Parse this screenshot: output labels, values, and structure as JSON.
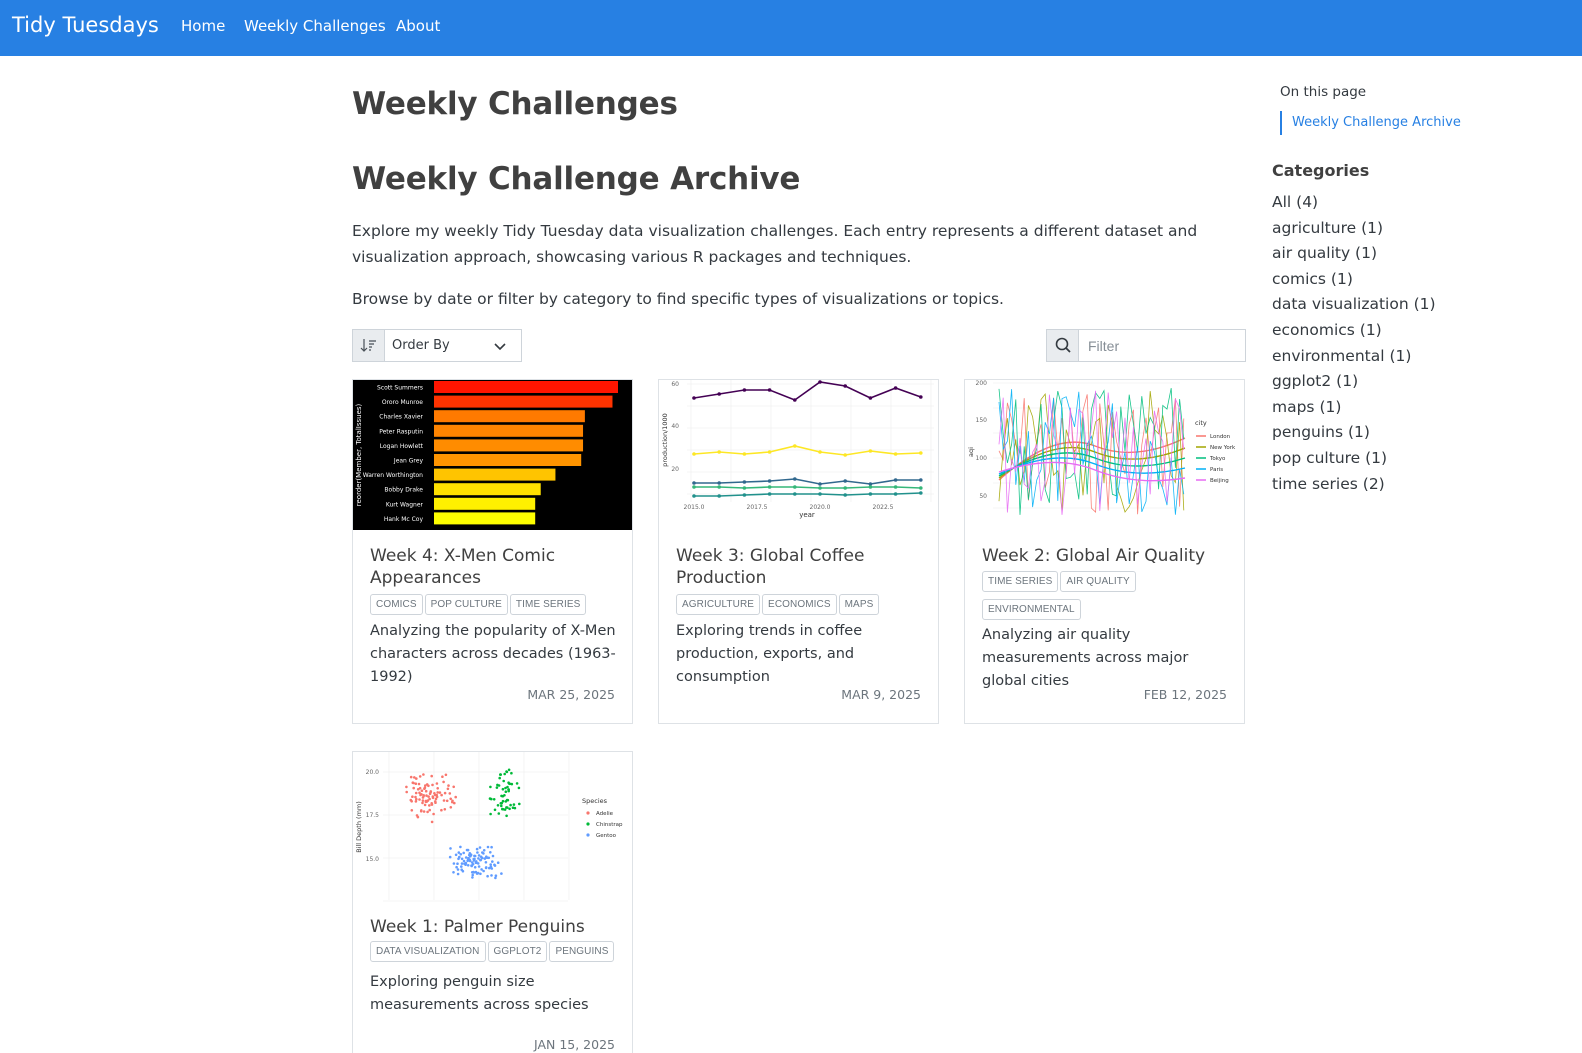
{
  "navbar": {
    "brand": "Tidy Tuesdays",
    "links": [
      "Home",
      "Weekly Challenges",
      "About"
    ]
  },
  "page": {
    "title": "Weekly Challenges",
    "section_title": "Weekly Challenge Archive",
    "intro": "Explore my weekly Tidy Tuesday data visualization challenges. Each entry represents a different dataset and visualization approach, showcasing various R packages and techniques.",
    "browse": "Browse by date or filter by category to find specific types of visualizations or topics."
  },
  "controls": {
    "order_by_label": "Order By",
    "filter_placeholder": "Filter"
  },
  "cards": [
    {
      "title": "Week 4: X-Men Comic Appearances",
      "tags": [
        "COMICS",
        "POP CULTURE",
        "TIME SERIES"
      ],
      "description": "Analyzing the popularity of X-Men characters across decades (1963-1992)",
      "date": "MAR 25, 2025"
    },
    {
      "title": "Week 3: Global Coffee Production",
      "tags": [
        "AGRICULTURE",
        "ECONOMICS",
        "MAPS"
      ],
      "description": "Exploring trends in coffee production, exports, and consumption",
      "date": "MAR 9, 2025"
    },
    {
      "title": "Week 2: Global Air Quality",
      "tags": [
        "TIME SERIES",
        "AIR QUALITY",
        "ENVIRONMENTAL"
      ],
      "description": "Analyzing air quality measurements across major global cities",
      "date": "FEB 12, 2025"
    },
    {
      "title": "Week 1: Palmer Penguins",
      "tags": [
        "DATA VISUALIZATION",
        "GGPLOT2",
        "PENGUINS"
      ],
      "description": "Exploring penguin size measurements across species",
      "date": "JAN 15, 2025"
    }
  ],
  "thumbnails": {
    "xmen": {
      "ylabel": "reorder(Member, TotalIssues)",
      "members": [
        "Scott Summers",
        "Ororo Munroe",
        "Charles Xavier",
        "Peter Rasputin",
        "Logan Howlett",
        "Jean Grey",
        "Warren Worthington",
        "Bobby Drake",
        "Kurt Wagner",
        "Hank Mc Coy"
      ],
      "values": [
        100,
        97,
        82,
        81,
        81,
        80,
        66,
        58,
        55,
        55
      ],
      "colors": [
        "#ff1500",
        "#ff3300",
        "#ff7a00",
        "#ff8400",
        "#ff8c00",
        "#ff9400",
        "#ffc400",
        "#ffe000",
        "#fff000",
        "#ffff00"
      ]
    },
    "coffee": {
      "xlabel": "year",
      "ylabel": "production/1000",
      "x_ticks": [
        "2015.0",
        "2017.5",
        "2020.0",
        "2022.5"
      ],
      "y_ticks": [
        "20",
        "40",
        "60"
      ],
      "series_colors": [
        "#440154",
        "#fde725",
        "#31688e",
        "#35b779",
        "#21918c"
      ]
    },
    "airq": {
      "ylabel": "aqi",
      "y_ticks": [
        "200",
        "150",
        "100",
        "50"
      ],
      "legend_title": "city",
      "cities": [
        "London",
        "New York",
        "Tokyo",
        "Paris",
        "Beijing"
      ],
      "city_colors": [
        "#f8766d",
        "#a3a500",
        "#00bf7d",
        "#00b0f6",
        "#e76bf3"
      ]
    },
    "penguins": {
      "ylabel": "Bill Depth (mm)",
      "y_ticks": [
        "20.0",
        "17.5",
        "15.0"
      ],
      "legend_title": "Species",
      "species": [
        "Adelie",
        "Chinstrap",
        "Gentoo"
      ],
      "species_colors": [
        "#f8766d",
        "#00ba38",
        "#619cff"
      ]
    }
  },
  "sidebar": {
    "on_this_page": "On this page",
    "toc_link": "Weekly Challenge Archive",
    "categories_title": "Categories",
    "categories": [
      "All (4)",
      "agriculture (1)",
      "air quality (1)",
      "comics (1)",
      "data visualization (1)",
      "economics (1)",
      "environmental (1)",
      "ggplot2 (1)",
      "maps (1)",
      "penguins (1)",
      "pop culture (1)",
      "time series (2)"
    ]
  }
}
